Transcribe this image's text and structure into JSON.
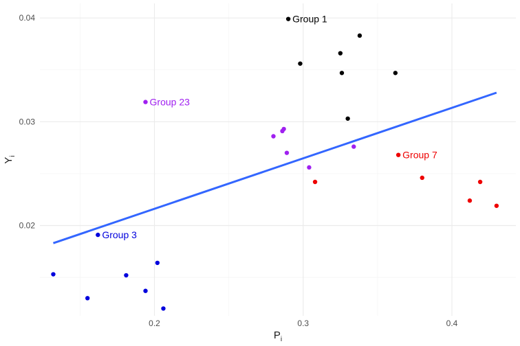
{
  "chart_data": {
    "type": "scatter",
    "title": "",
    "xlabel": "P",
    "xlabel_sub": "i",
    "ylabel": "Y",
    "ylabel_sub": "i",
    "xlim": [
      0.123,
      0.443
    ],
    "ylim": [
      0.0113,
      0.0414
    ],
    "x_ticks": [
      0.2,
      0.3,
      0.4
    ],
    "x_tick_labels": [
      "0.2",
      "0.3",
      "0.4"
    ],
    "y_ticks": [
      0.02,
      0.03,
      0.04
    ],
    "y_tick_labels": [
      "0.02",
      "0.03",
      "0.04"
    ],
    "grid": true,
    "colors": {
      "background": "#ffffff",
      "grid_major": "#ebebeb",
      "grid_minor": "#f5f5f5",
      "fit_line": "#3366ff"
    },
    "series": [
      {
        "color": "#000000",
        "points": [
          {
            "x": 0.29,
            "y": 0.0399
          },
          {
            "x": 0.338,
            "y": 0.0383
          },
          {
            "x": 0.325,
            "y": 0.0366
          },
          {
            "x": 0.298,
            "y": 0.0356
          },
          {
            "x": 0.326,
            "y": 0.0347
          },
          {
            "x": 0.362,
            "y": 0.0347
          },
          {
            "x": 0.33,
            "y": 0.0303
          }
        ]
      },
      {
        "color": "#a020f0",
        "points": [
          {
            "x": 0.194,
            "y": 0.0319
          },
          {
            "x": 0.287,
            "y": 0.0293
          },
          {
            "x": 0.286,
            "y": 0.0291
          },
          {
            "x": 0.28,
            "y": 0.0286
          },
          {
            "x": 0.334,
            "y": 0.0276
          },
          {
            "x": 0.289,
            "y": 0.027
          },
          {
            "x": 0.304,
            "y": 0.0256
          }
        ]
      },
      {
        "color": "#ee0000",
        "points": [
          {
            "x": 0.364,
            "y": 0.0268
          },
          {
            "x": 0.38,
            "y": 0.0246
          },
          {
            "x": 0.308,
            "y": 0.0242
          },
          {
            "x": 0.419,
            "y": 0.0242
          },
          {
            "x": 0.412,
            "y": 0.0224
          },
          {
            "x": 0.43,
            "y": 0.0219
          }
        ]
      },
      {
        "color": "#0000dd",
        "points": [
          {
            "x": 0.162,
            "y": 0.0191
          },
          {
            "x": 0.202,
            "y": 0.0164
          },
          {
            "x": 0.132,
            "y": 0.0153
          },
          {
            "x": 0.181,
            "y": 0.0152
          },
          {
            "x": 0.194,
            "y": 0.0137
          },
          {
            "x": 0.155,
            "y": 0.013
          },
          {
            "x": 0.206,
            "y": 0.012
          }
        ]
      }
    ],
    "annotations": [
      {
        "text": "Group 1",
        "x": 0.29,
        "y": 0.0399,
        "color": "#000000"
      },
      {
        "text": "Group 23",
        "x": 0.194,
        "y": 0.0319,
        "color": "#a020f0"
      },
      {
        "text": "Group 7",
        "x": 0.364,
        "y": 0.0268,
        "color": "#ee0000"
      },
      {
        "text": "Group 3",
        "x": 0.162,
        "y": 0.0191,
        "color": "#0000dd"
      }
    ],
    "fit_line": {
      "x": [
        0.132,
        0.43
      ],
      "y": [
        0.0183,
        0.0328
      ]
    }
  }
}
